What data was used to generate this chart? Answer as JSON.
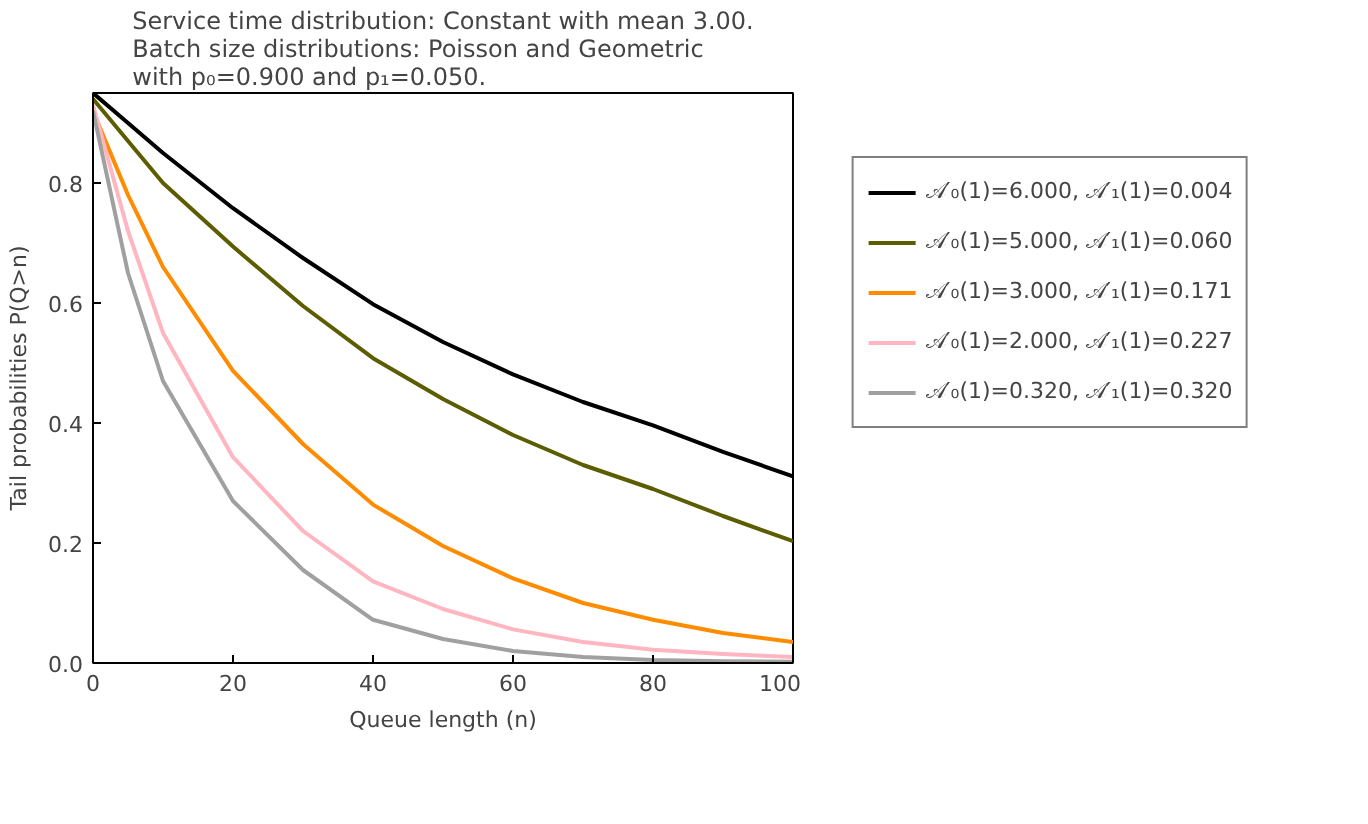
{
  "chart_data": {
    "type": "line",
    "title": "Service time distribution: Constant with mean 3.00.\nBatch size distributions: Poisson and Geometric\nwith p₀=0.900 and p₁=0.050.",
    "xlabel": "Queue length (n)",
    "ylabel": "Tail probabilities P(Q>n)",
    "x": [
      0,
      5,
      10,
      20,
      30,
      40,
      50,
      60,
      70,
      80,
      90,
      100
    ],
    "series": [
      {
        "name": "𝒜′₀(1)=6.000, 𝒜′₁(1)=0.004",
        "color": "#000000",
        "values": [
          0.95,
          0.9,
          0.85,
          0.758,
          0.675,
          0.598,
          0.535,
          0.481,
          0.435,
          0.396,
          0.352,
          0.311
        ]
      },
      {
        "name": "𝒜′₀(1)=5.000, 𝒜′₁(1)=0.060",
        "color": "#5c5c00",
        "values": [
          0.94,
          0.87,
          0.8,
          0.694,
          0.595,
          0.508,
          0.44,
          0.38,
          0.33,
          0.29,
          0.245,
          0.203
        ]
      },
      {
        "name": "𝒜′₀(1)=3.000, 𝒜′₁(1)=0.171",
        "color": "#ff8c00",
        "values": [
          0.92,
          0.78,
          0.66,
          0.487,
          0.365,
          0.264,
          0.195,
          0.141,
          0.1,
          0.072,
          0.05,
          0.035
        ]
      },
      {
        "name": "𝒜′₀(1)=2.000, 𝒜′₁(1)=0.227",
        "color": "#ffb6c1",
        "values": [
          0.93,
          0.72,
          0.55,
          0.343,
          0.22,
          0.136,
          0.09,
          0.056,
          0.035,
          0.022,
          0.015,
          0.01
        ]
      },
      {
        "name": "𝒜′₀(1)=0.320, 𝒜′₁(1)=0.320",
        "color": "#a0a0a0",
        "values": [
          0.92,
          0.65,
          0.47,
          0.27,
          0.155,
          0.072,
          0.04,
          0.02,
          0.01,
          0.005,
          0.003,
          0.002
        ]
      }
    ],
    "xlim": [
      0,
      100
    ],
    "ylim": [
      0,
      0.95
    ],
    "xticks": [
      0,
      20,
      40,
      60,
      80,
      100
    ],
    "yticks": [
      {
        "value": 0,
        "label": "0.0"
      },
      {
        "value": 0.2,
        "label": "0.2"
      },
      {
        "value": 0.4,
        "label": "0.4"
      },
      {
        "value": 0.6,
        "label": "0.6"
      },
      {
        "value": 0.8,
        "label": "0.8"
      }
    ],
    "grid": false,
    "legend": "right",
    "line_style": "solid",
    "marker": "none"
  }
}
